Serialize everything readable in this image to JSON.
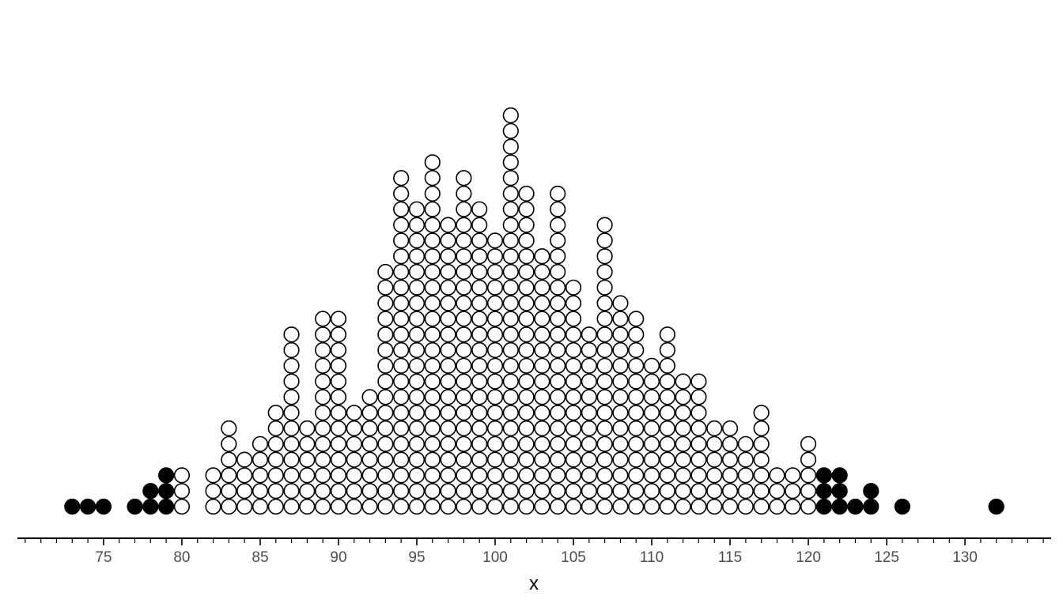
{
  "chart_data": {
    "type": "dotplot",
    "title": "",
    "xlabel": "x",
    "ylabel": "",
    "xlim": [
      69.5,
      135.5
    ],
    "x_ticks": [
      75,
      80,
      85,
      90,
      95,
      100,
      105,
      110,
      115,
      120,
      125,
      130
    ],
    "x_tick_labels": [
      "75",
      "80",
      "85",
      "90",
      "95",
      "100",
      "105",
      "110",
      "115",
      "120",
      "125",
      "130"
    ],
    "grid": false,
    "legend": "none",
    "colors": {
      "open": "#ffffff",
      "filled": "#000000",
      "stroke": "#000000",
      "axis": "#000000",
      "tick_label": "#4d4d4d"
    },
    "series": [
      {
        "name": "open",
        "fill": "open",
        "x": [
          80,
          82,
          83,
          84,
          85,
          86,
          87,
          88,
          89,
          90,
          91,
          92,
          93,
          94,
          95,
          96,
          97,
          98,
          99,
          100,
          101,
          102,
          103,
          104,
          105,
          106,
          107,
          108,
          109,
          110,
          111,
          112,
          113,
          114,
          115,
          116,
          117,
          118,
          119,
          120
        ],
        "counts": [
          3,
          3,
          6,
          4,
          5,
          7,
          12,
          6,
          13,
          13,
          7,
          8,
          16,
          22,
          20,
          23,
          19,
          22,
          20,
          18,
          26,
          21,
          17,
          21,
          15,
          12,
          19,
          14,
          13,
          10,
          12,
          9,
          9,
          6,
          6,
          5,
          7,
          3,
          3,
          5
        ]
      },
      {
        "name": "filled",
        "fill": "filled",
        "x": [
          73,
          74,
          75,
          77,
          78,
          79,
          121,
          122,
          123,
          124,
          126,
          132
        ],
        "counts": [
          1,
          1,
          1,
          1,
          2,
          3,
          3,
          3,
          1,
          2,
          1,
          1
        ]
      }
    ]
  }
}
